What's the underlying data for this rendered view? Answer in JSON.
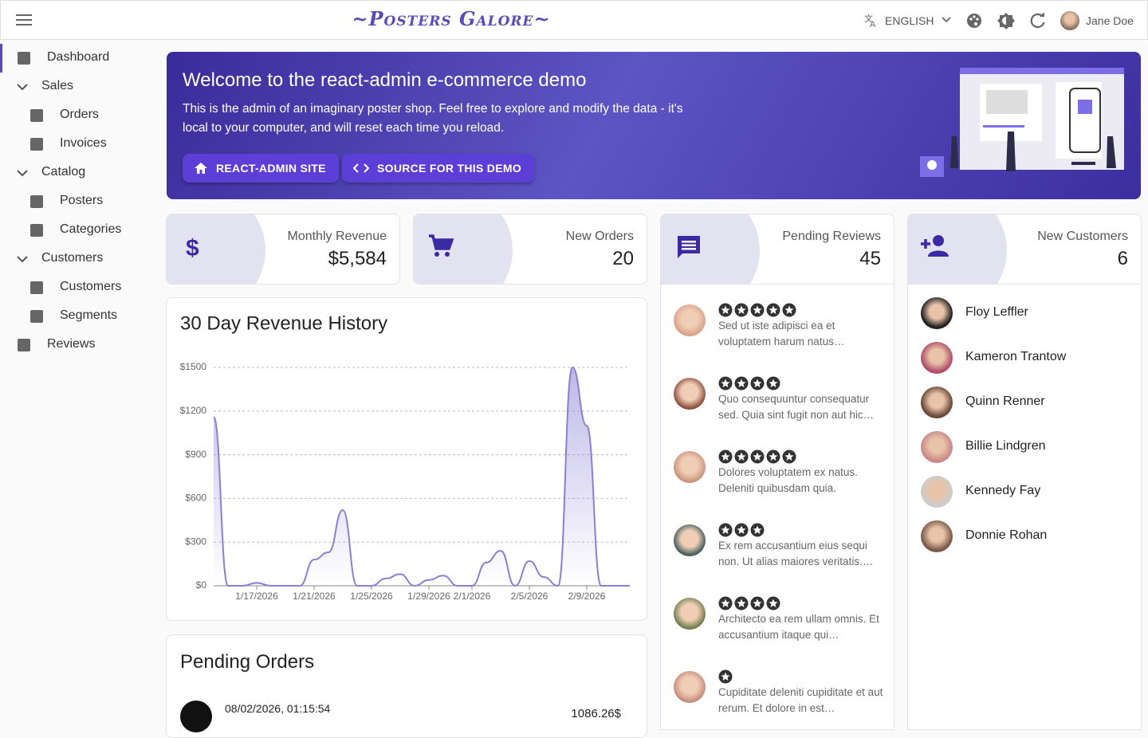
{
  "header": {
    "brand": "~Posters Galore~",
    "language": "ENGLISH",
    "user": "Jane Doe"
  },
  "sidebar": [
    {
      "label": "Dashboard"
    },
    {
      "label": "Sales",
      "children": [
        {
          "label": "Orders"
        },
        {
          "label": "Invoices"
        }
      ]
    },
    {
      "label": "Catalog",
      "children": [
        {
          "label": "Posters"
        },
        {
          "label": "Categories"
        }
      ]
    },
    {
      "label": "Customers",
      "children": [
        {
          "label": "Customers"
        },
        {
          "label": "Segments"
        }
      ]
    },
    {
      "label": "Reviews"
    }
  ],
  "banner": {
    "title": "Welcome to the react-admin e-commerce demo",
    "text": "This is the admin of an imaginary poster shop. Feel free to explore and modify the data - it's local to your computer, and will reset each time you reload.",
    "buttons": [
      "REACT-ADMIN SITE",
      "SOURCE FOR THIS DEMO"
    ]
  },
  "stats": [
    {
      "label": "Monthly Revenue",
      "value": "$5,584"
    },
    {
      "label": "New Orders",
      "value": 20
    },
    {
      "label": "Pending Reviews",
      "value": 45
    },
    {
      "label": "New Customers",
      "value": 6
    }
  ],
  "chart_data": {
    "type": "area",
    "title": "30 Day Revenue History",
    "color": "#8a7fd4",
    "x": [
      "1/14/2026",
      "1/15/2026",
      "1/16/2026",
      "1/17/2026",
      "1/18/2026",
      "1/19/2026",
      "1/20/2026",
      "1/21/2026",
      "1/22/2026",
      "1/23/2026",
      "1/24/2026",
      "1/25/2026",
      "1/26/2026",
      "1/27/2026",
      "1/28/2026",
      "1/29/2026",
      "1/30/2026",
      "1/31/2026",
      "2/1/2026",
      "2/2/2026",
      "2/3/2026",
      "2/4/2026",
      "2/5/2026",
      "2/6/2026",
      "2/7/2026",
      "2/8/2026",
      "2/9/2026",
      "2/10/2026",
      "2/11/2026",
      "2/12/2026"
    ],
    "values": [
      1160,
      0,
      0,
      20,
      0,
      0,
      0,
      180,
      230,
      520,
      0,
      0,
      50,
      80,
      0,
      40,
      70,
      0,
      0,
      160,
      240,
      0,
      170,
      60,
      0,
      1500,
      1100,
      0,
      0,
      0
    ],
    "xticks": [
      "1/17/2026",
      "1/21/2026",
      "1/25/2026",
      "1/29/2026",
      "2/1/2026",
      "2/5/2026",
      "2/9/2026"
    ],
    "ylim": [
      0,
      1500
    ],
    "yticks": [
      {
        "value": 0,
        "label": "$0"
      },
      {
        "value": 300,
        "label": "$300"
      },
      {
        "value": 600,
        "label": "$600"
      },
      {
        "value": 900,
        "label": "$900"
      },
      {
        "value": 1200,
        "label": "$1200"
      },
      {
        "value": 1500,
        "label": "$1500"
      }
    ],
    "grid": true
  },
  "pending_orders": {
    "title": "Pending Orders",
    "orders": [
      {
        "date": "08/02/2026, 01:15:54",
        "total": "1086.26$"
      }
    ]
  },
  "reviews": [
    {
      "rating": 5,
      "text": "Sed ut iste adipisci ea et voluptatem harum natus…"
    },
    {
      "rating": 4,
      "text": "Quo consequuntur consequatur sed. Quia sint fugit non aut hic…"
    },
    {
      "rating": 5,
      "text": "Dolores voluptatem ex natus. Deleniti quibusdam quia."
    },
    {
      "rating": 3,
      "text": "Ex rem accusantium eius sequi non. Ut alias maiores veritatis.…"
    },
    {
      "rating": 4,
      "text": "Architecto ea rem ullam omnis. Et accusantium itaque qui…"
    },
    {
      "rating": 1,
      "text": "Cupiditate deleniti cupiditate et aut rerum. Et dolore in est…"
    }
  ],
  "customers": [
    "Floy Leffler",
    "Kameron Trantow",
    "Quinn Renner",
    "Billie Lindgren",
    "Kennedy Fay",
    "Donnie Rohan"
  ]
}
